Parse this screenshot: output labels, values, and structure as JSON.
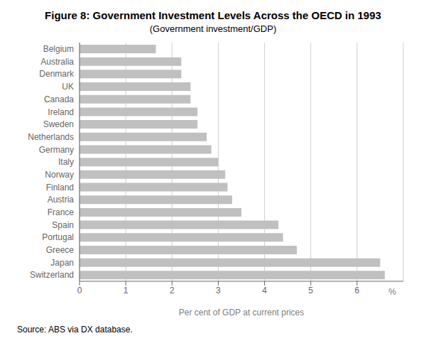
{
  "chart_data": {
    "type": "bar",
    "orientation": "horizontal",
    "title": "Figure 8: Government Investment Levels Across the OECD in 1993",
    "subtitle": "(Government investment/GDP)",
    "xlabel": "Per cent of GDP at current prices",
    "annotation": "%",
    "source": "Source:  ABS via DX database.",
    "categories": [
      "Belgium",
      "Australia",
      "Denmark",
      "UK",
      "Canada",
      "Ireland",
      "Sweden",
      "Netherlands",
      "Germany",
      "Italy",
      "Norway",
      "Finland",
      "Austria",
      "France",
      "Spain",
      "Portugal",
      "Greece",
      "Japan",
      "Switzerland"
    ],
    "values": [
      1.65,
      2.2,
      2.2,
      2.4,
      2.4,
      2.55,
      2.55,
      2.75,
      2.85,
      3.0,
      3.15,
      3.2,
      3.3,
      3.5,
      4.3,
      4.4,
      4.7,
      6.5,
      6.6
    ],
    "color": "#c0c0c0",
    "xlim": [
      0,
      7
    ],
    "xticks": [
      0,
      1,
      2,
      3,
      4,
      5,
      6
    ],
    "grid": true
  }
}
